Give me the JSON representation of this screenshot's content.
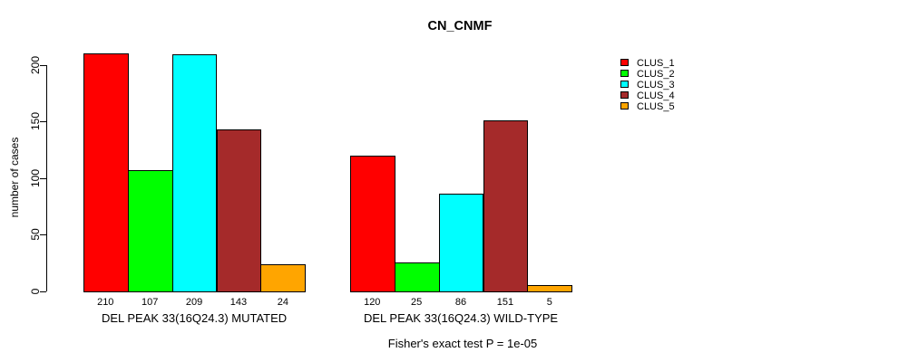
{
  "chart_data": {
    "type": "bar",
    "title": "CN_CNMF",
    "ylabel": "number of cases",
    "ylim": [
      0,
      200
    ],
    "yticks": [
      0,
      50,
      100,
      150,
      200
    ],
    "grid": false,
    "legend_position": "right",
    "bar_value_labels_shown": true,
    "groups": [
      {
        "label": "DEL PEAK 33(16Q24.3) MUTATED",
        "values": [
          210,
          107,
          209,
          143,
          24
        ]
      },
      {
        "label": "DEL PEAK 33(16Q24.3) WILD-TYPE",
        "values": [
          120,
          25,
          86,
          151,
          5
        ]
      }
    ],
    "series": [
      {
        "name": "CLUS_1",
        "color": "#ff0000"
      },
      {
        "name": "CLUS_2",
        "color": "#00ff00"
      },
      {
        "name": "CLUS_3",
        "color": "#00ffff"
      },
      {
        "name": "CLUS_4",
        "color": "#a52a2a"
      },
      {
        "name": "CLUS_5",
        "color": "#ffa500"
      }
    ],
    "annotation": "Fisher's exact test P = 1e-05"
  }
}
